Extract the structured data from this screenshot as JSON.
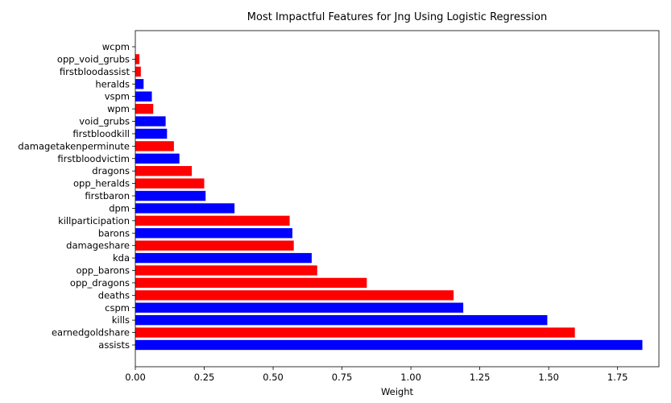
{
  "chart_data": {
    "type": "bar",
    "orientation": "horizontal",
    "title": "Most Impactful Features for Jng Using Logistic Regression",
    "xlabel": "Weight",
    "ylabel": "",
    "xlim": [
      0,
      1.9
    ],
    "xticks": [
      0.0,
      0.25,
      0.5,
      0.75,
      1.0,
      1.25,
      1.5,
      1.75
    ],
    "xtick_labels": [
      "0.00",
      "0.25",
      "0.50",
      "0.75",
      "1.00",
      "1.25",
      "1.50",
      "1.75"
    ],
    "grid": false,
    "legend": "none",
    "colors": {
      "positive": "#0000ff",
      "negative": "#ff0000"
    },
    "bars": [
      {
        "category": "assists",
        "value": 1.84,
        "color": "#0000ff"
      },
      {
        "category": "earnedgoldshare",
        "value": 1.595,
        "color": "#ff0000"
      },
      {
        "category": "kills",
        "value": 1.495,
        "color": "#0000ff"
      },
      {
        "category": "cspm",
        "value": 1.19,
        "color": "#0000ff"
      },
      {
        "category": "deaths",
        "value": 1.155,
        "color": "#ff0000"
      },
      {
        "category": "opp_dragons",
        "value": 0.84,
        "color": "#ff0000"
      },
      {
        "category": "opp_barons",
        "value": 0.66,
        "color": "#ff0000"
      },
      {
        "category": "kda",
        "value": 0.64,
        "color": "#0000ff"
      },
      {
        "category": "damageshare",
        "value": 0.575,
        "color": "#ff0000"
      },
      {
        "category": "barons",
        "value": 0.57,
        "color": "#0000ff"
      },
      {
        "category": "killparticipation",
        "value": 0.56,
        "color": "#ff0000"
      },
      {
        "category": "dpm",
        "value": 0.36,
        "color": "#0000ff"
      },
      {
        "category": "firstbaron",
        "value": 0.255,
        "color": "#0000ff"
      },
      {
        "category": "opp_heralds",
        "value": 0.25,
        "color": "#ff0000"
      },
      {
        "category": "dragons",
        "value": 0.205,
        "color": "#ff0000"
      },
      {
        "category": "firstbloodvictim",
        "value": 0.16,
        "color": "#0000ff"
      },
      {
        "category": "damagetakenperminute",
        "value": 0.14,
        "color": "#ff0000"
      },
      {
        "category": "firstbloodkill",
        "value": 0.115,
        "color": "#0000ff"
      },
      {
        "category": "void_grubs",
        "value": 0.11,
        "color": "#0000ff"
      },
      {
        "category": "wpm",
        "value": 0.065,
        "color": "#ff0000"
      },
      {
        "category": "vspm",
        "value": 0.06,
        "color": "#0000ff"
      },
      {
        "category": "heralds",
        "value": 0.03,
        "color": "#0000ff"
      },
      {
        "category": "firstbloodassist",
        "value": 0.02,
        "color": "#ff0000"
      },
      {
        "category": "opp_void_grubs",
        "value": 0.015,
        "color": "#ff0000"
      },
      {
        "category": "wcpm",
        "value": 0.0,
        "color": "#0000ff"
      }
    ]
  }
}
